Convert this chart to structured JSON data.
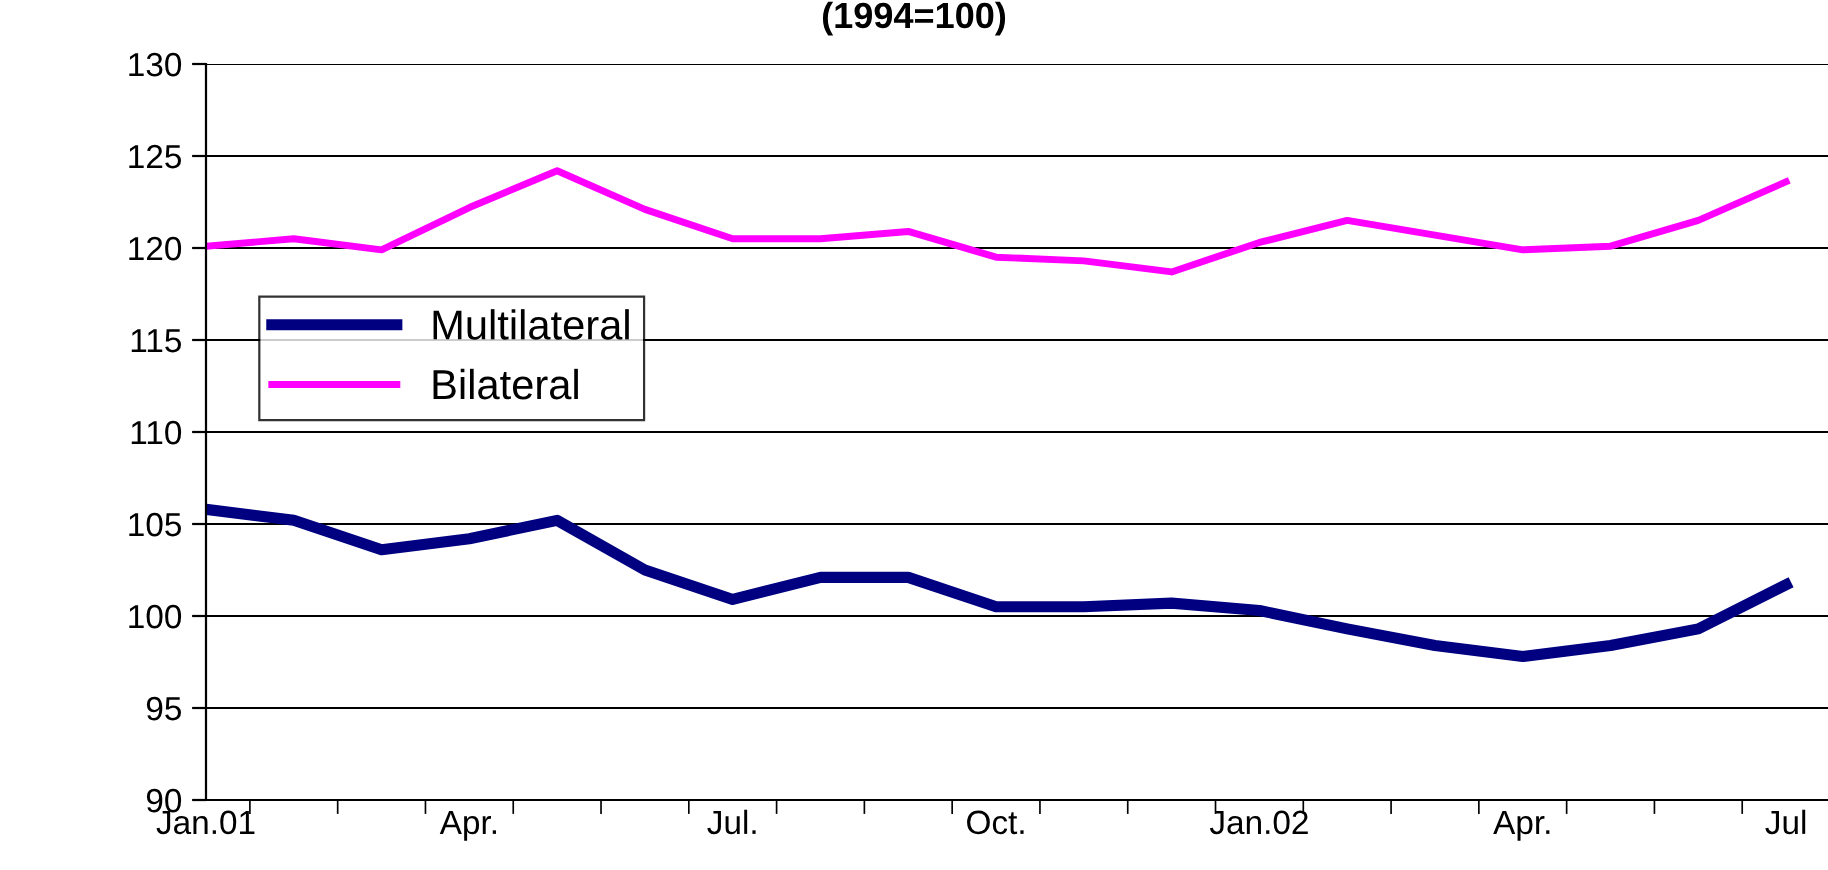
{
  "chart_data": {
    "type": "line",
    "title": "(1994=100)",
    "categories": [
      "Jan.01",
      null,
      null,
      "Apr.",
      null,
      null,
      "Jul.",
      null,
      null,
      "Oct.",
      null,
      null,
      "Jan.02",
      null,
      null,
      "Apr.",
      null,
      null,
      "Jul"
    ],
    "series": [
      {
        "name": "Multilateral",
        "color": "#000080",
        "values": [
          105.8,
          105.2,
          103.6,
          104.2,
          105.2,
          102.5,
          100.9,
          102.1,
          102.1,
          100.5,
          100.5,
          100.7,
          100.3,
          99.3,
          98.4,
          97.8,
          98.4,
          99.3,
          101.7
        ]
      },
      {
        "name": "Bilateral",
        "color": "#ff00ff",
        "values": [
          120.1,
          120.5,
          119.9,
          122.2,
          124.2,
          122.1,
          120.5,
          120.5,
          120.9,
          119.5,
          119.3,
          118.7,
          120.3,
          121.5,
          120.7,
          119.9,
          120.1,
          121.5,
          123.6
        ]
      }
    ],
    "ylim": [
      90,
      130
    ],
    "yticks": [
      90,
      95,
      100,
      105,
      110,
      115,
      120,
      125,
      130
    ],
    "grid": "y",
    "legend": "left",
    "marker": "none",
    "line_style": "solid"
  }
}
